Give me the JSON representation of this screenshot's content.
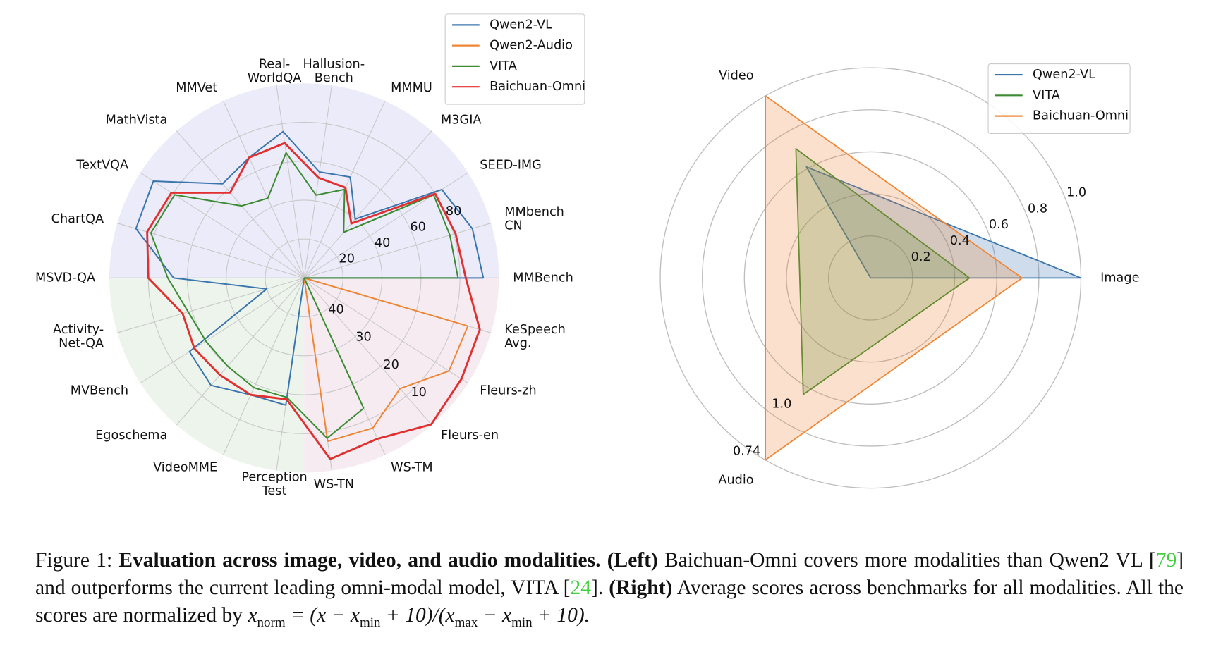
{
  "chart_data": [
    {
      "type": "radar",
      "categories": [
        "MMBench",
        "MMbench\nCN",
        "SEED-IMG",
        "M3GIA",
        "MMMU",
        "Hallusion-\nBench",
        "Real-\nWorldQA",
        "MMVet",
        "MathVista",
        "TextVQA",
        "ChartQA",
        "MSVD-QA",
        "Activity-\nNet-QA",
        "MVBench",
        "Egoschema",
        "VideoMME",
        "Perception\nTest",
        "WS-TN",
        "WS-TM",
        "Fleurs-en",
        "Fleurs-zh",
        "KeSpeech\nAvg."
      ],
      "series": [
        {
          "name": "Qwen2-VL",
          "color": "#3a75ae",
          "values": [
            92,
            90,
            84,
            40,
            57,
            55,
            76,
            68,
            64,
            92,
            90,
            67,
            20,
            70,
            73,
            66,
            66,
            null,
            null,
            null,
            null,
            null
          ]
        },
        {
          "name": "Qwen2-Audio",
          "color": "#ef8636",
          "values": [
            null,
            null,
            null,
            null,
            null,
            null,
            null,
            null,
            null,
            null,
            null,
            null,
            null,
            null,
            null,
            null,
            null,
            7.6,
            7.6,
            12.4,
            5.8,
            6.2
          ]
        },
        {
          "name": "VITA",
          "color": "#3b8b32",
          "values": [
            79,
            78,
            79,
            31,
            50,
            43,
            65,
            45,
            49,
            79,
            82,
            70,
            62,
            60,
            60,
            62,
            62,
            8.4,
            13.2,
            null,
            null,
            null
          ]
        },
        {
          "name": "Baichuan-Omni",
          "color": "#e03030",
          "values": [
            83,
            81,
            80,
            37,
            51,
            52,
            70,
            68,
            58,
            81,
            84,
            80,
            65,
            67,
            66,
            66,
            63,
            3,
            4.6,
            0.2,
            2,
            3
          ]
        }
      ],
      "ylim": [
        0,
        100
      ],
      "yticks": [
        20,
        40,
        60,
        80
      ],
      "y2lim": [
        50,
        0
      ],
      "y2ticks": [
        40,
        30,
        20,
        10
      ],
      "grid": true,
      "legend": "upper right"
    },
    {
      "type": "radar",
      "categories": [
        "Image",
        "Video",
        "Audio"
      ],
      "series": [
        {
          "name": "Qwen2-VL",
          "color": "#3a75ae",
          "values": [
            1.0,
            0.61,
            0
          ]
        },
        {
          "name": "VITA",
          "color": "#3b8b32",
          "values": [
            0.47,
            0.71,
            0.64
          ]
        },
        {
          "name": "Baichuan-Omni",
          "color": "#ef8636",
          "values": [
            0.72,
            1.0,
            1.0
          ]
        }
      ],
      "ylim": [
        0,
        1
      ],
      "yticks": [
        0.2,
        0.4,
        0.6,
        0.8,
        {
          "value": 1,
          "label": "1.0"
        }
      ],
      "annotations": [
        "1.0",
        "0.74"
      ],
      "grid": true,
      "legend": "upper right",
      "filled": true
    }
  ],
  "caption": {
    "label": "Figure 1:",
    "title": "Evaluation across image, video, and audio modalities.",
    "left_tag": "(Left)",
    "left_text_1": "Baichuan-Omni covers more modalities than Qwen2 VL [",
    "cite_1": "79",
    "left_text_2": "] and outperforms the current leading omni-modal model, VITA [",
    "cite_2": "24",
    "left_text_3": "].",
    "right_tag": "(Right)",
    "right_text": "Average scores across benchmarks for all modalities. All the scores are normalized by",
    "formula": [
      "x",
      "norm",
      " = (x − x",
      "min",
      " + 10)/(x",
      "max",
      " − x",
      "min",
      " + 10)."
    ]
  }
}
